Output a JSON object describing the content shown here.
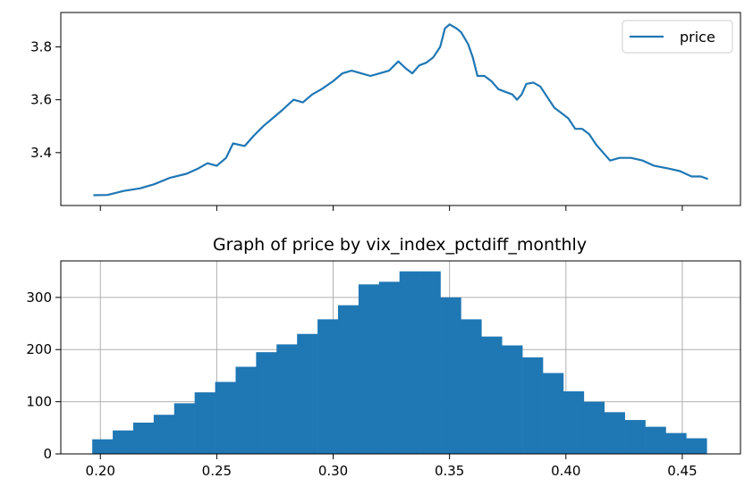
{
  "chart_data": [
    {
      "type": "line",
      "title": "",
      "xlabel": "",
      "ylabel": "",
      "legend": {
        "entries": [
          "price"
        ],
        "placement": "top-right"
      },
      "grid": false,
      "color": "#1f77b4",
      "x_ticks": [
        0.2,
        0.25,
        0.3,
        0.35,
        0.4,
        0.45
      ],
      "x_tick_labels_shown": false,
      "xlim": [
        0.183,
        0.475
      ],
      "ylim": [
        3.2,
        3.93
      ],
      "y_ticks": [
        3.4,
        3.6,
        3.8
      ],
      "y_tick_labels": [
        "3.4",
        "3.6",
        "3.8"
      ],
      "series": [
        {
          "name": "price",
          "points": [
            [
              0.197,
              3.239
            ],
            [
              0.203,
              3.24
            ],
            [
              0.21,
              3.255
            ],
            [
              0.217,
              3.265
            ],
            [
              0.223,
              3.28
            ],
            [
              0.23,
              3.305
            ],
            [
              0.237,
              3.32
            ],
            [
              0.242,
              3.34
            ],
            [
              0.246,
              3.36
            ],
            [
              0.25,
              3.35
            ],
            [
              0.254,
              3.38
            ],
            [
              0.257,
              3.435
            ],
            [
              0.262,
              3.425
            ],
            [
              0.266,
              3.465
            ],
            [
              0.27,
              3.5
            ],
            [
              0.274,
              3.53
            ],
            [
              0.278,
              3.56
            ],
            [
              0.283,
              3.6
            ],
            [
              0.287,
              3.59
            ],
            [
              0.291,
              3.62
            ],
            [
              0.295,
              3.64
            ],
            [
              0.3,
              3.67
            ],
            [
              0.304,
              3.7
            ],
            [
              0.308,
              3.71
            ],
            [
              0.312,
              3.7
            ],
            [
              0.316,
              3.69
            ],
            [
              0.32,
              3.7
            ],
            [
              0.324,
              3.71
            ],
            [
              0.328,
              3.745
            ],
            [
              0.331,
              3.72
            ],
            [
              0.334,
              3.7
            ],
            [
              0.337,
              3.73
            ],
            [
              0.34,
              3.74
            ],
            [
              0.343,
              3.76
            ],
            [
              0.346,
              3.8
            ],
            [
              0.348,
              3.87
            ],
            [
              0.35,
              3.885
            ],
            [
              0.353,
              3.87
            ],
            [
              0.355,
              3.855
            ],
            [
              0.358,
              3.81
            ],
            [
              0.36,
              3.76
            ],
            [
              0.362,
              3.69
            ],
            [
              0.365,
              3.69
            ],
            [
              0.368,
              3.67
            ],
            [
              0.371,
              3.64
            ],
            [
              0.374,
              3.63
            ],
            [
              0.377,
              3.62
            ],
            [
              0.379,
              3.6
            ],
            [
              0.381,
              3.62
            ],
            [
              0.383,
              3.66
            ],
            [
              0.386,
              3.665
            ],
            [
              0.389,
              3.65
            ],
            [
              0.392,
              3.61
            ],
            [
              0.395,
              3.57
            ],
            [
              0.398,
              3.55
            ],
            [
              0.401,
              3.53
            ],
            [
              0.404,
              3.49
            ],
            [
              0.407,
              3.49
            ],
            [
              0.41,
              3.47
            ],
            [
              0.413,
              3.43
            ],
            [
              0.416,
              3.4
            ],
            [
              0.419,
              3.37
            ],
            [
              0.423,
              3.38
            ],
            [
              0.428,
              3.38
            ],
            [
              0.433,
              3.37
            ],
            [
              0.438,
              3.35
            ],
            [
              0.444,
              3.34
            ],
            [
              0.449,
              3.33
            ],
            [
              0.454,
              3.31
            ],
            [
              0.458,
              3.31
            ],
            [
              0.461,
              3.3
            ]
          ]
        }
      ]
    },
    {
      "type": "bar",
      "title": "Graph of price by vix_index_pctdiff_monthly",
      "xlabel": "",
      "ylabel": "",
      "grid": true,
      "color": "#1f77b4",
      "xlim": [
        0.183,
        0.475
      ],
      "ylim": [
        0,
        370
      ],
      "x_ticks": [
        0.2,
        0.25,
        0.3,
        0.35,
        0.4,
        0.45
      ],
      "x_tick_labels": [
        "0.20",
        "0.25",
        "0.30",
        "0.35",
        "0.40",
        "0.45"
      ],
      "y_ticks": [
        0,
        100,
        200,
        300
      ],
      "y_tick_labels": [
        "0",
        "100",
        "200",
        "300"
      ],
      "bin_edges": [
        0.1965,
        0.2053,
        0.2141,
        0.2229,
        0.2317,
        0.2405,
        0.2493,
        0.2581,
        0.2669,
        0.2757,
        0.2845,
        0.2933,
        0.3021,
        0.3109,
        0.3197,
        0.3285,
        0.3373,
        0.3461,
        0.3549,
        0.3637,
        0.3725,
        0.3813,
        0.3901,
        0.3989,
        0.4077,
        0.4165,
        0.4253,
        0.4341,
        0.4429,
        0.4517,
        0.4605
      ],
      "values": [
        28,
        45,
        60,
        75,
        97,
        118,
        138,
        167,
        195,
        210,
        230,
        258,
        285,
        325,
        330,
        350,
        350,
        300,
        258,
        225,
        208,
        185,
        155,
        120,
        100,
        80,
        65,
        52,
        40,
        30
      ]
    }
  ]
}
